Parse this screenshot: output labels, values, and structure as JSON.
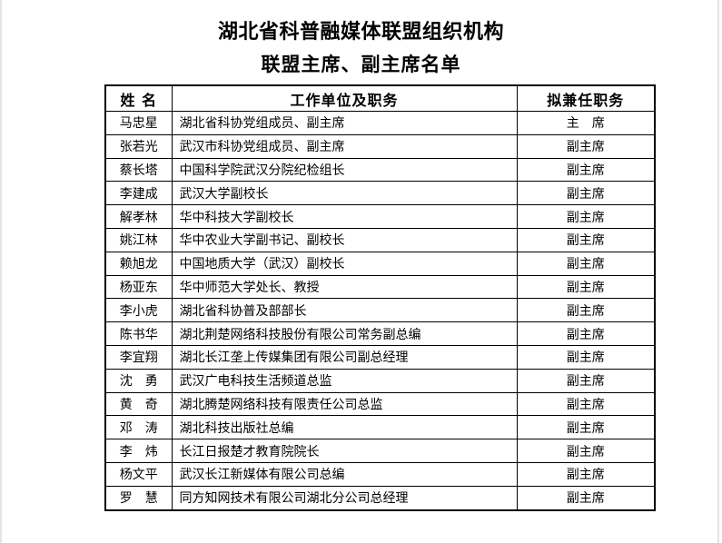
{
  "document": {
    "title": "湖北省科普融媒体联盟组织机构",
    "subtitle": "联盟主席、副主席名单"
  },
  "table": {
    "headers": [
      "姓 名",
      "工作单位及职务",
      "拟兼任职务"
    ],
    "rows": [
      {
        "name": "马忠星",
        "position": "湖北省科协党组成员、副主席",
        "role": "主　席"
      },
      {
        "name": "张若光",
        "position": "武汉市科协党组成员、副主席",
        "role": "副主席"
      },
      {
        "name": "蔡长塔",
        "position": "中国科学院武汉分院纪检组长",
        "role": "副主席"
      },
      {
        "name": "李建成",
        "position": "武汉大学副校长",
        "role": "副主席"
      },
      {
        "name": "解孝林",
        "position": "华中科技大学副校长",
        "role": "副主席"
      },
      {
        "name": "姚江林",
        "position": "华中农业大学副书记、副校长",
        "role": "副主席"
      },
      {
        "name": "赖旭龙",
        "position": "中国地质大学（武汉）副校长",
        "role": "副主席"
      },
      {
        "name": "杨亚东",
        "position": "华中师范大学处长、教授",
        "role": "副主席"
      },
      {
        "name": "李小虎",
        "position": "湖北省科协普及部部长",
        "role": "副主席"
      },
      {
        "name": "陈书华",
        "position": "湖北荆楚网络科技股份有限公司常务副总编",
        "role": "副主席"
      },
      {
        "name": "李宜翔",
        "position": "湖北长江垄上传媒集团有限公司副总经理",
        "role": "副主席"
      },
      {
        "name": "沈　勇",
        "position": "武汉广电科技生活频道总监",
        "role": "副主席"
      },
      {
        "name": "黄　奇",
        "position": "湖北腾楚网络科技有限责任公司总监",
        "role": "副主席"
      },
      {
        "name": "邓　涛",
        "position": "湖北科技出版社总编",
        "role": "副主席"
      },
      {
        "name": "李　炜",
        "position": "长江日报楚才教育院院长",
        "role": "副主席"
      },
      {
        "name": "杨文平",
        "position": "武汉长江新媒体有限公司总编",
        "role": "副主席"
      },
      {
        "name": "罗　慧",
        "position": "同方知网技术有限公司湖北分公司总经理",
        "role": "副主席"
      }
    ]
  },
  "colors": {
    "text": "#000000",
    "border": "#000000",
    "page_background": "#ffffff",
    "page_edge": "#e4e4e4"
  }
}
